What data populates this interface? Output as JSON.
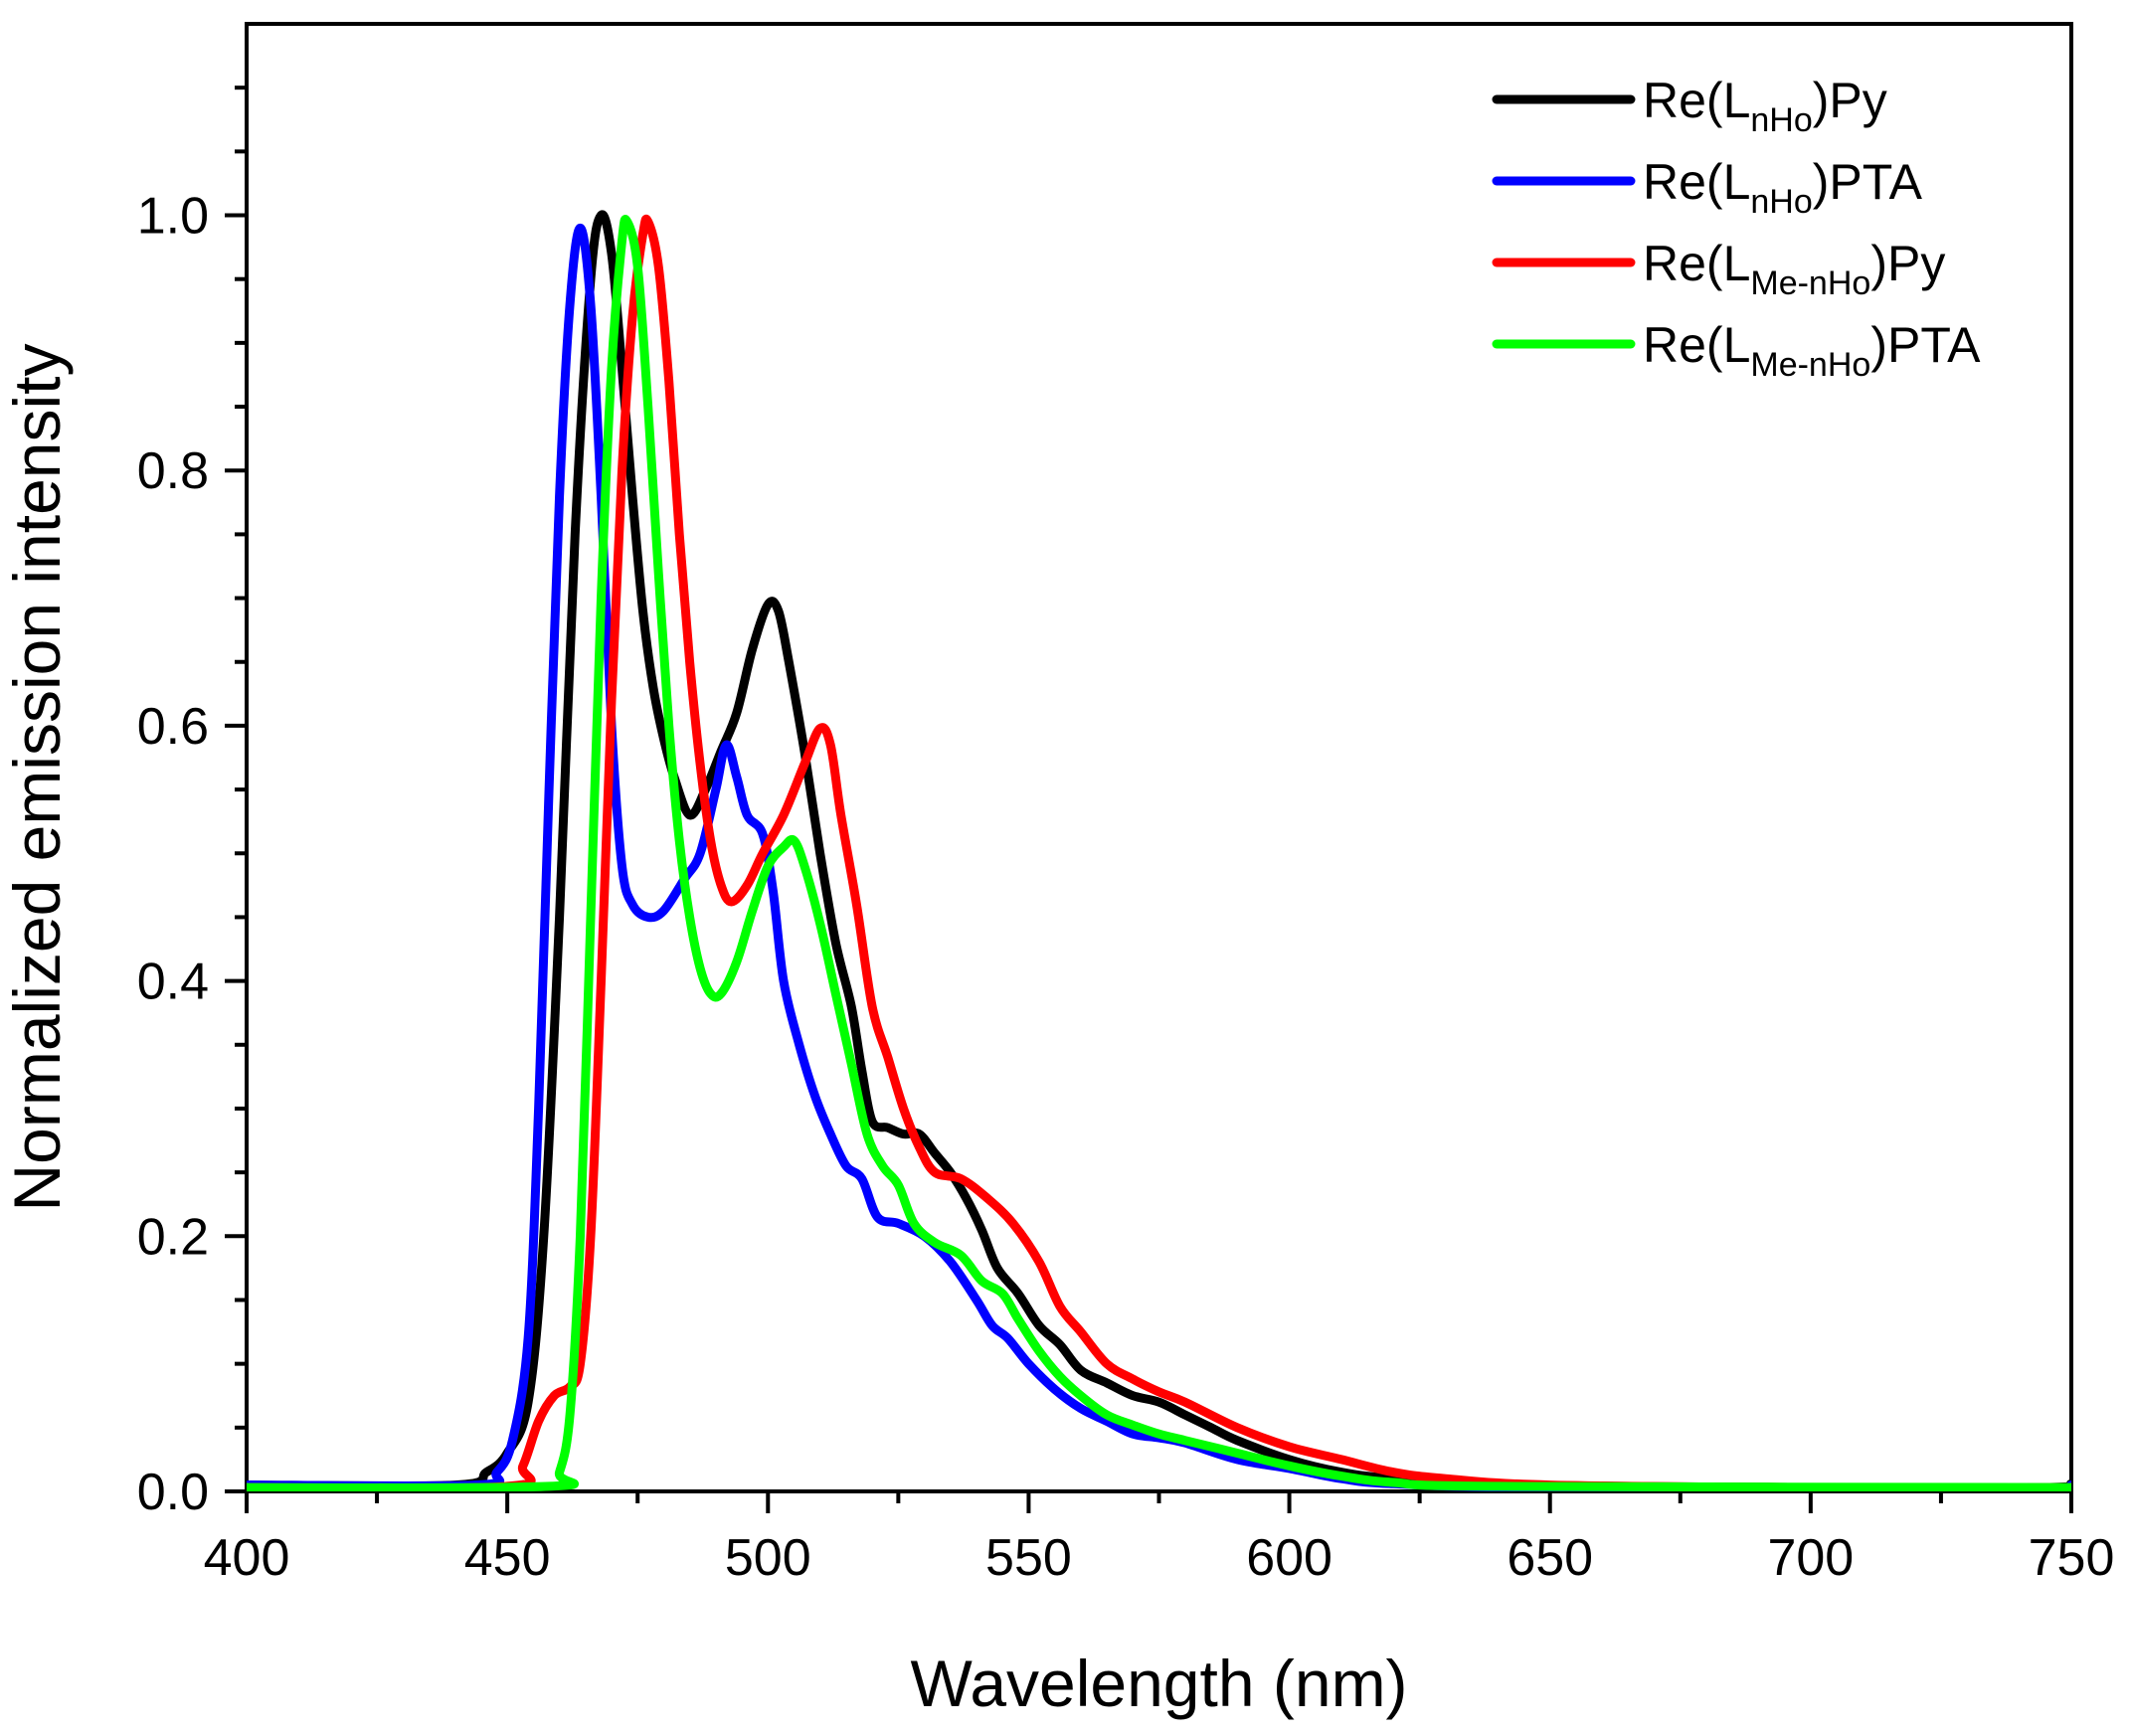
{
  "chart_data": {
    "type": "line",
    "title": "",
    "xlabel": "Wavelength (nm)",
    "ylabel": "Normalized emission intensity",
    "xlim": [
      400,
      750
    ],
    "ylim": [
      0.0,
      1.15
    ],
    "xticks": [
      400,
      450,
      500,
      550,
      600,
      650,
      700,
      750
    ],
    "xtick_labels": [
      "400",
      "450",
      "500",
      "550",
      "600",
      "650",
      "700",
      "750"
    ],
    "yticks": [
      0.0,
      0.2,
      0.4,
      0.6,
      0.8,
      1.0
    ],
    "ytick_labels": [
      "0.0",
      "0.2",
      "0.4",
      "0.6",
      "0.8",
      "1.0"
    ],
    "grid": false,
    "legend_position": "top-right",
    "series": [
      {
        "name": "Re(LnHo)Py",
        "legend": {
          "prefix": "Re(L",
          "sub": "nHo",
          "suffix": ")Py"
        },
        "color": "#000000",
        "points": [
          [
            400,
            0.005
          ],
          [
            440,
            0.005
          ],
          [
            446,
            0.015
          ],
          [
            450,
            0.03
          ],
          [
            454,
            0.07
          ],
          [
            457,
            0.2
          ],
          [
            460,
            0.45
          ],
          [
            463,
            0.75
          ],
          [
            466,
            0.95
          ],
          [
            468,
            1.0
          ],
          [
            470,
            0.97
          ],
          [
            472,
            0.88
          ],
          [
            474,
            0.78
          ],
          [
            476,
            0.69
          ],
          [
            478,
            0.63
          ],
          [
            480,
            0.59
          ],
          [
            482,
            0.56
          ],
          [
            485,
            0.53
          ],
          [
            488,
            0.55
          ],
          [
            491,
            0.58
          ],
          [
            494,
            0.61
          ],
          [
            497,
            0.66
          ],
          [
            500,
            0.695
          ],
          [
            502,
            0.69
          ],
          [
            504,
            0.65
          ],
          [
            507,
            0.58
          ],
          [
            510,
            0.5
          ],
          [
            513,
            0.43
          ],
          [
            516,
            0.38
          ],
          [
            518,
            0.33
          ],
          [
            520,
            0.29
          ],
          [
            523,
            0.285
          ],
          [
            526,
            0.28
          ],
          [
            529,
            0.28
          ],
          [
            532,
            0.265
          ],
          [
            535,
            0.25
          ],
          [
            538,
            0.23
          ],
          [
            541,
            0.205
          ],
          [
            544,
            0.175
          ],
          [
            548,
            0.155
          ],
          [
            552,
            0.13
          ],
          [
            556,
            0.115
          ],
          [
            560,
            0.095
          ],
          [
            565,
            0.085
          ],
          [
            570,
            0.075
          ],
          [
            575,
            0.07
          ],
          [
            580,
            0.06
          ],
          [
            585,
            0.05
          ],
          [
            590,
            0.04
          ],
          [
            600,
            0.025
          ],
          [
            610,
            0.015
          ],
          [
            620,
            0.01
          ],
          [
            640,
            0.005
          ],
          [
            700,
            0.003
          ],
          [
            745,
            0.003
          ],
          [
            750,
            0.006
          ]
        ]
      },
      {
        "name": "Re(LnHo)PTA",
        "legend": {
          "prefix": "Re(L",
          "sub": "nHo",
          "suffix": ")PTA"
        },
        "color": "#0000ff",
        "points": [
          [
            400,
            0.005
          ],
          [
            444,
            0.005
          ],
          [
            448,
            0.015
          ],
          [
            451,
            0.04
          ],
          [
            454,
            0.12
          ],
          [
            456,
            0.3
          ],
          [
            458,
            0.55
          ],
          [
            460,
            0.78
          ],
          [
            462,
            0.93
          ],
          [
            464,
            0.99
          ],
          [
            466,
            0.93
          ],
          [
            468,
            0.78
          ],
          [
            470,
            0.6
          ],
          [
            472,
            0.49
          ],
          [
            474,
            0.46
          ],
          [
            477,
            0.45
          ],
          [
            480,
            0.455
          ],
          [
            484,
            0.48
          ],
          [
            487,
            0.5
          ],
          [
            490,
            0.55
          ],
          [
            492,
            0.585
          ],
          [
            494,
            0.56
          ],
          [
            496,
            0.53
          ],
          [
            499,
            0.515
          ],
          [
            501,
            0.47
          ],
          [
            503,
            0.4
          ],
          [
            506,
            0.35
          ],
          [
            509,
            0.31
          ],
          [
            512,
            0.28
          ],
          [
            515,
            0.255
          ],
          [
            518,
            0.245
          ],
          [
            521,
            0.215
          ],
          [
            525,
            0.21
          ],
          [
            530,
            0.2
          ],
          [
            535,
            0.18
          ],
          [
            540,
            0.15
          ],
          [
            543,
            0.13
          ],
          [
            546,
            0.12
          ],
          [
            550,
            0.1
          ],
          [
            555,
            0.08
          ],
          [
            560,
            0.065
          ],
          [
            565,
            0.055
          ],
          [
            570,
            0.045
          ],
          [
            575,
            0.042
          ],
          [
            580,
            0.038
          ],
          [
            590,
            0.025
          ],
          [
            600,
            0.018
          ],
          [
            610,
            0.01
          ],
          [
            620,
            0.006
          ],
          [
            650,
            0.003
          ],
          [
            745,
            0.003
          ],
          [
            750,
            0.005
          ]
        ]
      },
      {
        "name": "Re(LMe-nHo)Py",
        "legend": {
          "prefix": "Re(L",
          "sub": "Me-nHo",
          "suffix": ")Py"
        },
        "color": "#ff0000",
        "points": [
          [
            400,
            0.003
          ],
          [
            450,
            0.004
          ],
          [
            453,
            0.02
          ],
          [
            456,
            0.055
          ],
          [
            459,
            0.075
          ],
          [
            462,
            0.082
          ],
          [
            464,
            0.1
          ],
          [
            466,
            0.2
          ],
          [
            468,
            0.4
          ],
          [
            470,
            0.62
          ],
          [
            472,
            0.8
          ],
          [
            474,
            0.92
          ],
          [
            476,
            0.985
          ],
          [
            477,
            0.995
          ],
          [
            479,
            0.96
          ],
          [
            481,
            0.87
          ],
          [
            483,
            0.75
          ],
          [
            485,
            0.65
          ],
          [
            487,
            0.57
          ],
          [
            489,
            0.51
          ],
          [
            491,
            0.475
          ],
          [
            493,
            0.462
          ],
          [
            496,
            0.475
          ],
          [
            499,
            0.5
          ],
          [
            503,
            0.53
          ],
          [
            507,
            0.57
          ],
          [
            510,
            0.598
          ],
          [
            512,
            0.585
          ],
          [
            514,
            0.53
          ],
          [
            517,
            0.46
          ],
          [
            520,
            0.38
          ],
          [
            523,
            0.34
          ],
          [
            526,
            0.3
          ],
          [
            529,
            0.27
          ],
          [
            532,
            0.25
          ],
          [
            537,
            0.245
          ],
          [
            542,
            0.23
          ],
          [
            547,
            0.21
          ],
          [
            552,
            0.18
          ],
          [
            556,
            0.145
          ],
          [
            560,
            0.125
          ],
          [
            565,
            0.1
          ],
          [
            570,
            0.088
          ],
          [
            575,
            0.078
          ],
          [
            580,
            0.07
          ],
          [
            590,
            0.05
          ],
          [
            600,
            0.035
          ],
          [
            610,
            0.025
          ],
          [
            620,
            0.015
          ],
          [
            630,
            0.01
          ],
          [
            650,
            0.005
          ],
          [
            700,
            0.003
          ],
          [
            750,
            0.003
          ]
        ]
      },
      {
        "name": "Re(LMe-nHo)PTA",
        "legend": {
          "prefix": "Re(L",
          "sub": "Me-nHo",
          "suffix": ")PTA"
        },
        "color": "#00ff00",
        "points": [
          [
            400,
            0.003
          ],
          [
            458,
            0.004
          ],
          [
            460,
            0.015
          ],
          [
            462,
            0.06
          ],
          [
            464,
            0.2
          ],
          [
            466,
            0.45
          ],
          [
            468,
            0.7
          ],
          [
            470,
            0.88
          ],
          [
            472,
            0.98
          ],
          [
            473,
            0.995
          ],
          [
            475,
            0.96
          ],
          [
            477,
            0.85
          ],
          [
            479,
            0.72
          ],
          [
            481,
            0.6
          ],
          [
            483,
            0.51
          ],
          [
            485,
            0.45
          ],
          [
            487,
            0.41
          ],
          [
            489,
            0.39
          ],
          [
            491,
            0.39
          ],
          [
            494,
            0.415
          ],
          [
            497,
            0.455
          ],
          [
            500,
            0.49
          ],
          [
            503,
            0.505
          ],
          [
            505,
            0.51
          ],
          [
            507,
            0.49
          ],
          [
            510,
            0.445
          ],
          [
            513,
            0.39
          ],
          [
            516,
            0.335
          ],
          [
            519,
            0.28
          ],
          [
            522,
            0.255
          ],
          [
            525,
            0.24
          ],
          [
            528,
            0.21
          ],
          [
            532,
            0.195
          ],
          [
            537,
            0.185
          ],
          [
            541,
            0.165
          ],
          [
            545,
            0.155
          ],
          [
            548,
            0.135
          ],
          [
            552,
            0.11
          ],
          [
            556,
            0.09
          ],
          [
            560,
            0.075
          ],
          [
            565,
            0.06
          ],
          [
            570,
            0.052
          ],
          [
            575,
            0.045
          ],
          [
            580,
            0.04
          ],
          [
            590,
            0.03
          ],
          [
            600,
            0.02
          ],
          [
            610,
            0.012
          ],
          [
            620,
            0.007
          ],
          [
            640,
            0.004
          ],
          [
            750,
            0.003
          ]
        ]
      }
    ]
  }
}
